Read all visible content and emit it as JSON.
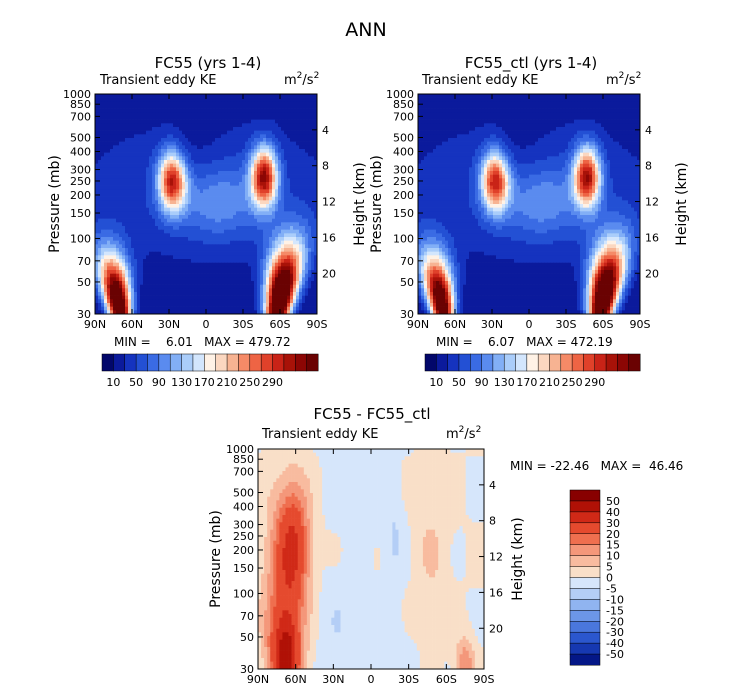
{
  "figure": {
    "title": "ANN"
  },
  "chart_data": [
    {
      "type": "heatmap",
      "title": "FC55 (yrs 1-4)",
      "variable": "Transient eddy KE",
      "units_base": "m",
      "units_exp": "2",
      "units_tail": "/s",
      "units_exp2": "2",
      "xlabel": "",
      "ylabel": "Pressure (mb)",
      "y2label": "Height (km)",
      "x_ticks": [
        "90N",
        "60N",
        "30N",
        "0",
        "30S",
        "60S",
        "90S"
      ],
      "x_values": [
        90,
        60,
        30,
        0,
        -30,
        -60,
        -90
      ],
      "pressure_ticks": [
        "30",
        "50",
        "70",
        "100",
        "150",
        "200",
        "250",
        "300",
        "400",
        "500",
        "700",
        "850",
        "1000"
      ],
      "pressure_values": [
        30,
        50,
        70,
        100,
        150,
        200,
        250,
        300,
        400,
        500,
        700,
        850,
        1000
      ],
      "height_ticks": [
        "4",
        "8",
        "12",
        "16",
        "20"
      ],
      "height_values": [
        4,
        8,
        12,
        16,
        20
      ],
      "ylim": [
        1000,
        30
      ],
      "stats": "MIN =    6.01   MAX = 479.72",
      "min": 6.01,
      "max": 479.72,
      "colorbar_levels": [
        "10",
        "50",
        "90",
        "130",
        "170",
        "210",
        "250",
        "290"
      ],
      "maxima": [
        {
          "lat": 71,
          "p": 35,
          "value": 430
        },
        {
          "lat": 27,
          "p": 255,
          "value": 300
        },
        {
          "lat": -60,
          "p": 38,
          "value": 470
        },
        {
          "lat": -47,
          "p": 265,
          "value": 295
        }
      ]
    },
    {
      "type": "heatmap",
      "title": "FC55_ctl (yrs 1-4)",
      "variable": "Transient eddy KE",
      "units_base": "m",
      "units_exp": "2",
      "units_tail": "/s",
      "units_exp2": "2",
      "xlabel": "",
      "ylabel": "Pressure (mb)",
      "y2label": "Height (km)",
      "x_ticks": [
        "90N",
        "60N",
        "30N",
        "0",
        "30S",
        "60S",
        "90S"
      ],
      "x_values": [
        90,
        60,
        30,
        0,
        -30,
        -60,
        -90
      ],
      "pressure_ticks": [
        "30",
        "50",
        "70",
        "100",
        "150",
        "200",
        "250",
        "300",
        "400",
        "500",
        "700",
        "850",
        "1000"
      ],
      "pressure_values": [
        30,
        50,
        70,
        100,
        150,
        200,
        250,
        300,
        400,
        500,
        700,
        850,
        1000
      ],
      "height_ticks": [
        "4",
        "8",
        "12",
        "16",
        "20"
      ],
      "height_values": [
        4,
        8,
        12,
        16,
        20
      ],
      "ylim": [
        1000,
        30
      ],
      "stats": "MIN =    6.07   MAX = 472.19",
      "min": 6.07,
      "max": 472.19,
      "colorbar_levels": [
        "10",
        "50",
        "90",
        "130",
        "170",
        "210",
        "250",
        "290"
      ],
      "maxima": [
        {
          "lat": 71,
          "p": 35,
          "value": 415
        },
        {
          "lat": 27,
          "p": 255,
          "value": 295
        },
        {
          "lat": -60,
          "p": 38,
          "value": 465
        },
        {
          "lat": -47,
          "p": 265,
          "value": 290
        }
      ]
    },
    {
      "type": "heatmap",
      "title": "FC55 - FC55_ctl",
      "variable": "Transient eddy KE",
      "units_base": "m",
      "units_exp": "2",
      "units_tail": "/s",
      "units_exp2": "2",
      "xlabel": "",
      "ylabel": "Pressure (mb)",
      "y2label": "Height (km)",
      "x_ticks": [
        "90N",
        "60N",
        "30N",
        "0",
        "30S",
        "60S",
        "90S"
      ],
      "x_values": [
        90,
        60,
        30,
        0,
        -30,
        -60,
        -90
      ],
      "pressure_ticks": [
        "30",
        "50",
        "70",
        "100",
        "150",
        "200",
        "250",
        "300",
        "400",
        "500",
        "700",
        "850",
        "1000"
      ],
      "pressure_values": [
        30,
        50,
        70,
        100,
        150,
        200,
        250,
        300,
        400,
        500,
        700,
        850,
        1000
      ],
      "height_ticks": [
        "4",
        "8",
        "12",
        "16",
        "20"
      ],
      "height_values": [
        4,
        8,
        12,
        16,
        20
      ],
      "ylim": [
        1000,
        30
      ],
      "stats": "MIN = -22.46   MAX =  46.46",
      "min": -22.46,
      "max": 46.46,
      "colorbar_levels": [
        "50",
        "40",
        "30",
        "20",
        "15",
        "10",
        "5",
        "0",
        "-5",
        "-10",
        "-15",
        "-20",
        "-30",
        "-40",
        "-50"
      ],
      "features": [
        {
          "lat": 68,
          "p": 40,
          "value": 42
        },
        {
          "lat": 60,
          "p": 200,
          "value": 25
        },
        {
          "lat": -50,
          "p": 200,
          "value": 3
        },
        {
          "lat": -17,
          "p": 200,
          "value": -6
        },
        {
          "lat": -75,
          "p": 35,
          "value": 15
        }
      ]
    }
  ],
  "colors": {
    "fullfield": [
      "#02076a",
      "#0b1a9c",
      "#1533bf",
      "#2350d4",
      "#3a6be4",
      "#5a8bef",
      "#82aff6",
      "#aacdfa",
      "#d3e6fd",
      "#fff2e6",
      "#fbd7c0",
      "#f7b392",
      "#f58a67",
      "#ee6444",
      "#e0412a",
      "#c92317",
      "#a81208",
      "#8c0604",
      "#6a0202"
    ],
    "diff_pos": [
      "#f9dfc8",
      "#f8bb9f",
      "#f4977a",
      "#ef6f4f",
      "#e54a2e",
      "#d02917",
      "#b01106",
      "#880000"
    ],
    "diff_neg": [
      "#d6e6fb",
      "#b4cef6",
      "#90b4f0",
      "#6c96e8",
      "#4a77dd",
      "#2b57ce",
      "#1638b1",
      "#041787"
    ]
  }
}
